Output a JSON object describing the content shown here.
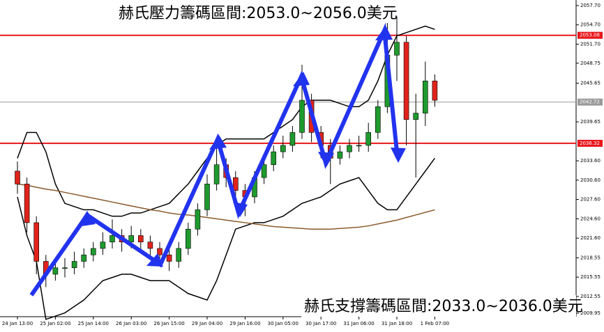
{
  "chart_data": {
    "type": "candlestick",
    "annotations": [
      "赫氏壓力籌碼區間:2053.0~2056.0美元",
      "赫氏支撐籌碼區間:2033.0~2036.0美元"
    ],
    "categories": [
      "24 Jan 13:00",
      null,
      null,
      null,
      "25 Jan 02:00",
      null,
      null,
      null,
      "25 Jan 14:00",
      null,
      null,
      null,
      "26 Jan 03:00",
      null,
      null,
      null,
      "26 Jan 15:00",
      null,
      null,
      null,
      "29 Jan 04:00",
      null,
      null,
      null,
      "29 Jan 16:00",
      null,
      null,
      null,
      "30 Jan 05:00",
      null,
      null,
      null,
      "30 Jan 17:00",
      null,
      null,
      null,
      "31 Jan 06:00",
      null,
      null,
      null,
      "31 Jan 18:00",
      null,
      null,
      null,
      "1 Feb 07:00"
    ],
    "open": [
      2032,
      2030,
      2024,
      2018,
      2016,
      2017,
      2017,
      2018,
      2019,
      2020,
      2021,
      2022,
      2021,
      2022,
      2021,
      2020,
      2019,
      2018,
      2020,
      2023,
      2026,
      2030,
      2033,
      2031,
      2029,
      2028,
      2031,
      2033,
      2035,
      2036,
      2038,
      2043,
      2038,
      2036,
      2034,
      2035,
      2036,
      2036,
      2038,
      2042,
      2050,
      2052,
      2040,
      2041,
      2046
    ],
    "high": [
      2033.5,
      2031,
      2025,
      2019,
      2018.5,
      2018.5,
      2019.5,
      2020,
      2021,
      2022.5,
      2024.5,
      2023,
      2023.5,
      2023,
      2022,
      2021,
      2020,
      2021,
      2024,
      2027,
      2031.5,
      2036,
      2034,
      2032,
      2030,
      2032,
      2034,
      2036,
      2037.5,
      2039,
      2048.5,
      2044,
      2039,
      2037,
      2036,
      2037,
      2037.5,
      2039.5,
      2043,
      2055,
      2056,
      2053,
      2044,
      2049,
      2047
    ],
    "low": [
      2028.5,
      2022.5,
      2016,
      2014,
      2015,
      2015.5,
      2016,
      2017,
      2018,
      2019,
      2020,
      2019.5,
      2020,
      2019.5,
      2018.5,
      2017.5,
      2016.5,
      2017,
      2019,
      2022,
      2025,
      2029,
      2029.5,
      2027,
      2025,
      2027,
      2030,
      2032,
      2034,
      2035,
      2037,
      2036.5,
      2034,
      2030,
      2033,
      2034,
      2035,
      2035,
      2037,
      2041,
      2046,
      2036,
      2031,
      2039,
      2042
    ],
    "close": [
      2030,
      2024,
      2018,
      2016,
      2017,
      2017,
      2018,
      2019,
      2020,
      2021,
      2022,
      2021,
      2022,
      2021,
      2020,
      2019,
      2018,
      2020,
      2023,
      2026,
      2030,
      2033,
      2031,
      2029,
      2028,
      2031,
      2033,
      2035,
      2036,
      2038,
      2043,
      2038,
      2036,
      2034,
      2035,
      2036,
      2036,
      2038,
      2042,
      2050,
      2052,
      2040,
      2041,
      2046,
      2043
    ],
    "up_color": "#1f9a2e",
    "down_color": "#e0231c",
    "lines": [
      {
        "color": "#000000",
        "values": [
          2034,
          2038,
          2038,
          2035,
          2030,
          2027,
          2026.5,
          2026,
          2026,
          2025.5,
          2025,
          2025,
          2025.5,
          2025.5,
          2026,
          2026.5,
          2027,
          2028.5,
          2030,
          2032,
          2034,
          2036,
          2037,
          2037,
          2037,
          2037,
          2037,
          2038,
          2039,
          2040,
          2042,
          2043,
          2043,
          2043,
          2042.5,
          2042,
          2042,
          2043,
          2046,
          2050,
          2053,
          2053.5,
          2054,
          2054.5,
          2054
        ]
      },
      {
        "color": "#000000",
        "values": [
          2028,
          2022,
          2018,
          2009,
          2009.5,
          2010,
          2011,
          2012,
          2013.5,
          2015,
          2015.5,
          2016,
          2016,
          2015.5,
          2015,
          2015,
          2015,
          2014,
          2013,
          2012.5,
          2012,
          2015,
          2019,
          2023,
          2023.5,
          2024,
          2024,
          2024.5,
          2025,
          2026,
          2027,
          2027.5,
          2028,
          2029,
          2030,
          2030.5,
          2031,
          2029,
          2027,
          2026,
          2026,
          2028,
          2030,
          2032,
          2034
        ]
      },
      {
        "color": "#8b5a2b",
        "values": [
          2030,
          2029.8,
          2029.5,
          2029.2,
          2029,
          2028.7,
          2028.4,
          2028.1,
          2027.8,
          2027.5,
          2027.2,
          2026.9,
          2026.6,
          2026.3,
          2026,
          2025.8,
          2025.5,
          2025.3,
          2025.2,
          2025,
          2024.8,
          2024.6,
          2024.4,
          2024.2,
          2024,
          2023.8,
          2023.6,
          2023.4,
          2023.3,
          2023.2,
          2023.1,
          2023,
          2023,
          2023,
          2023.1,
          2023.2,
          2023.3,
          2023.5,
          2023.8,
          2024.1,
          2024.4,
          2024.8,
          2025.2,
          2025.6,
          2026
        ]
      }
    ],
    "levels": [
      {
        "value": 2053.08,
        "color": "#e8161b"
      },
      {
        "value": 2036.32,
        "color": "#e8161b"
      },
      {
        "value": 2042.72,
        "color": "#9a9a9a"
      }
    ],
    "ylim": [
      2009.41,
      2058.56
    ],
    "yticks": [
      {
        "value": 2057.7,
        "label": "2057.70"
      },
      {
        "value": 2054.7,
        "label": "2054.70"
      },
      {
        "value": 2051.7,
        "label": "2051.70"
      },
      2048.75,
      2045.65,
      2039.65,
      {
        "value": 2033.6,
        "label": "2033.60"
      },
      {
        "value": 2030.6,
        "label": "2030.60"
      },
      {
        "value": 2027.6,
        "label": "2027.60"
      },
      {
        "value": 2024.6,
        "label": "2024.60"
      },
      {
        "value": 2021.6,
        "label": "2021.60"
      },
      2018.55,
      2015.55,
      2012.55,
      2009.95
    ]
  }
}
